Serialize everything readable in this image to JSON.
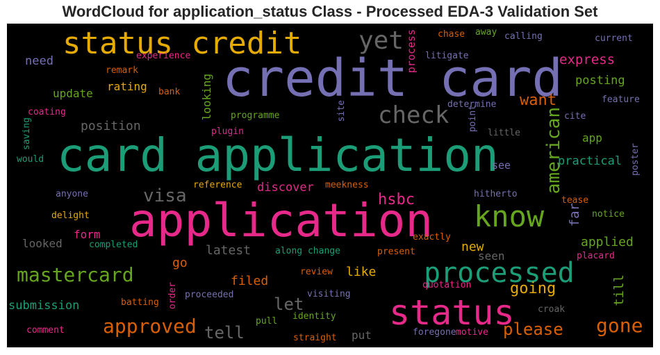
{
  "chart_data": {
    "type": "wordcloud",
    "title": "WordCloud for application_status Class - Processed EDA-3 Validation Set",
    "words": [
      {
        "text": "credit card",
        "color": "#7570b3",
        "vertical": false
      },
      {
        "text": "card application",
        "color": "#1b9e77",
        "vertical": false
      },
      {
        "text": "application",
        "color": "#e7298a",
        "vertical": false
      },
      {
        "text": "status credit",
        "color": "#e6ab02",
        "vertical": false
      },
      {
        "text": "status",
        "color": "#e7298a",
        "vertical": false
      },
      {
        "text": "processed",
        "color": "#1b9e77",
        "vertical": false
      },
      {
        "text": "know",
        "color": "#66a61e",
        "vertical": false
      },
      {
        "text": "check",
        "color": "#666666",
        "vertical": false
      },
      {
        "text": "yet",
        "color": "#666666",
        "vertical": false
      },
      {
        "text": "mastercard",
        "color": "#66a61e",
        "vertical": false
      },
      {
        "text": "approved",
        "color": "#d95f02",
        "vertical": false
      },
      {
        "text": "gone",
        "color": "#d95f02",
        "vertical": false
      },
      {
        "text": "american",
        "color": "#66a61e",
        "vertical": true
      },
      {
        "text": "visa",
        "color": "#666666",
        "vertical": false
      },
      {
        "text": "want",
        "color": "#d95f02",
        "vertical": false
      },
      {
        "text": "please",
        "color": "#d95f02",
        "vertical": false
      },
      {
        "text": "hsbc",
        "color": "#e7298a",
        "vertical": false
      },
      {
        "text": "let",
        "color": "#666666",
        "vertical": false
      },
      {
        "text": "tell",
        "color": "#666666",
        "vertical": false
      },
      {
        "text": "going",
        "color": "#e6ab02",
        "vertical": false
      },
      {
        "text": "express",
        "color": "#e7298a",
        "vertical": false
      },
      {
        "text": "position",
        "color": "#666666",
        "vertical": false
      },
      {
        "text": "discover",
        "color": "#e7298a",
        "vertical": false
      },
      {
        "text": "filed",
        "color": "#d95f02",
        "vertical": false
      },
      {
        "text": "like",
        "color": "#e6ab02",
        "vertical": false
      },
      {
        "text": "far",
        "color": "#7570b3",
        "vertical": true
      },
      {
        "text": "till",
        "color": "#66a61e",
        "vertical": true
      },
      {
        "text": "new",
        "color": "#e6ab02",
        "vertical": false
      },
      {
        "text": "go",
        "color": "#d95f02",
        "vertical": false
      },
      {
        "text": "latest",
        "color": "#666666",
        "vertical": false
      },
      {
        "text": "applied",
        "color": "#66a61e",
        "vertical": false
      },
      {
        "text": "practical",
        "color": "#1b9e77",
        "vertical": false
      },
      {
        "text": "submission",
        "color": "#1b9e77",
        "vertical": false
      },
      {
        "text": "update",
        "color": "#66a61e",
        "vertical": false
      },
      {
        "text": "need",
        "color": "#7570b3",
        "vertical": false
      },
      {
        "text": "posting",
        "color": "#66a61e",
        "vertical": false
      },
      {
        "text": "rating",
        "color": "#e6ab02",
        "vertical": false
      },
      {
        "text": "looked",
        "color": "#666666",
        "vertical": false
      },
      {
        "text": "form",
        "color": "#e7298a",
        "vertical": false
      },
      {
        "text": "put",
        "color": "#666666",
        "vertical": false
      },
      {
        "text": "seen",
        "color": "#666666",
        "vertical": false
      },
      {
        "text": "looking",
        "color": "#66a61e",
        "vertical": true
      },
      {
        "text": "process",
        "color": "#e7298a",
        "vertical": true
      },
      {
        "text": "app",
        "color": "#66a61e",
        "vertical": false
      },
      {
        "text": "see",
        "color": "#7570b3",
        "vertical": false
      },
      {
        "text": "remark",
        "color": "#d95f02",
        "vertical": false
      },
      {
        "text": "bank",
        "color": "#d95f02",
        "vertical": false
      },
      {
        "text": "experience",
        "color": "#e7298a",
        "vertical": false
      },
      {
        "text": "chase",
        "color": "#d95f02",
        "vertical": false
      },
      {
        "text": "away",
        "color": "#66a61e",
        "vertical": false
      },
      {
        "text": "calling",
        "color": "#7570b3",
        "vertical": false
      },
      {
        "text": "current",
        "color": "#7570b3",
        "vertical": false
      },
      {
        "text": "litigate",
        "color": "#7570b3",
        "vertical": false
      },
      {
        "text": "coating",
        "color": "#e7298a",
        "vertical": false
      },
      {
        "text": "programme",
        "color": "#66a61e",
        "vertical": false
      },
      {
        "text": "determine",
        "color": "#7570b3",
        "vertical": false
      },
      {
        "text": "cite",
        "color": "#7570b3",
        "vertical": false
      },
      {
        "text": "feature",
        "color": "#7570b3",
        "vertical": false
      },
      {
        "text": "saving",
        "color": "#1b9e77",
        "vertical": true
      },
      {
        "text": "plugin",
        "color": "#e7298a",
        "vertical": false
      },
      {
        "text": "site",
        "color": "#7570b3",
        "vertical": true
      },
      {
        "text": "point",
        "color": "#7570b3",
        "vertical": true
      },
      {
        "text": "little",
        "color": "#666666",
        "vertical": false
      },
      {
        "text": "would",
        "color": "#1b9e77",
        "vertical": false
      },
      {
        "text": "poster",
        "color": "#7570b3",
        "vertical": true
      },
      {
        "text": "anyone",
        "color": "#7570b3",
        "vertical": false
      },
      {
        "text": "reference",
        "color": "#e6ab02",
        "vertical": false
      },
      {
        "text": "meekness",
        "color": "#d95f02",
        "vertical": false
      },
      {
        "text": "hitherto",
        "color": "#7570b3",
        "vertical": false
      },
      {
        "text": "tease",
        "color": "#d95f02",
        "vertical": false
      },
      {
        "text": "delight",
        "color": "#e6ab02",
        "vertical": false
      },
      {
        "text": "notice",
        "color": "#66a61e",
        "vertical": false
      },
      {
        "text": "exactly",
        "color": "#d95f02",
        "vertical": false
      },
      {
        "text": "completed",
        "color": "#1b9e77",
        "vertical": false
      },
      {
        "text": "along change",
        "color": "#1b9e77",
        "vertical": false
      },
      {
        "text": "present",
        "color": "#d95f02",
        "vertical": false
      },
      {
        "text": "placard",
        "color": "#e7298a",
        "vertical": false
      },
      {
        "text": "review",
        "color": "#d95f02",
        "vertical": false
      },
      {
        "text": "quotation",
        "color": "#e7298a",
        "vertical": false
      },
      {
        "text": "order",
        "color": "#e7298a",
        "vertical": true
      },
      {
        "text": "proceeded",
        "color": "#7570b3",
        "vertical": false
      },
      {
        "text": "visiting",
        "color": "#7570b3",
        "vertical": false
      },
      {
        "text": "batting",
        "color": "#d95f02",
        "vertical": false
      },
      {
        "text": "croak",
        "color": "#666666",
        "vertical": false
      },
      {
        "text": "identity",
        "color": "#66a61e",
        "vertical": false
      },
      {
        "text": "pull",
        "color": "#66a61e",
        "vertical": false
      },
      {
        "text": "comment",
        "color": "#e7298a",
        "vertical": false
      },
      {
        "text": "straight",
        "color": "#d95f02",
        "vertical": false
      },
      {
        "text": "foregone",
        "color": "#7570b3",
        "vertical": false
      },
      {
        "text": "motive",
        "color": "#e7298a",
        "vertical": false
      }
    ]
  }
}
